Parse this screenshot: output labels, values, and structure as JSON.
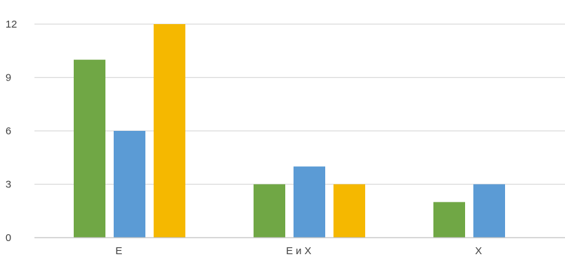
{
  "chart_data": {
    "type": "bar",
    "categories": [
      "E",
      "E и X",
      "X"
    ],
    "series": [
      {
        "values": [
          10,
          3,
          2
        ],
        "color": "#70a745"
      },
      {
        "values": [
          6,
          4,
          3
        ],
        "color": "#5b9bd5"
      },
      {
        "values": [
          12,
          3,
          null
        ],
        "color": "#f5b800"
      }
    ],
    "ylim": [
      0,
      12
    ],
    "yticks": [
      0,
      3,
      6,
      9,
      12
    ],
    "grid": true,
    "title": "",
    "xlabel": "",
    "ylabel": ""
  }
}
